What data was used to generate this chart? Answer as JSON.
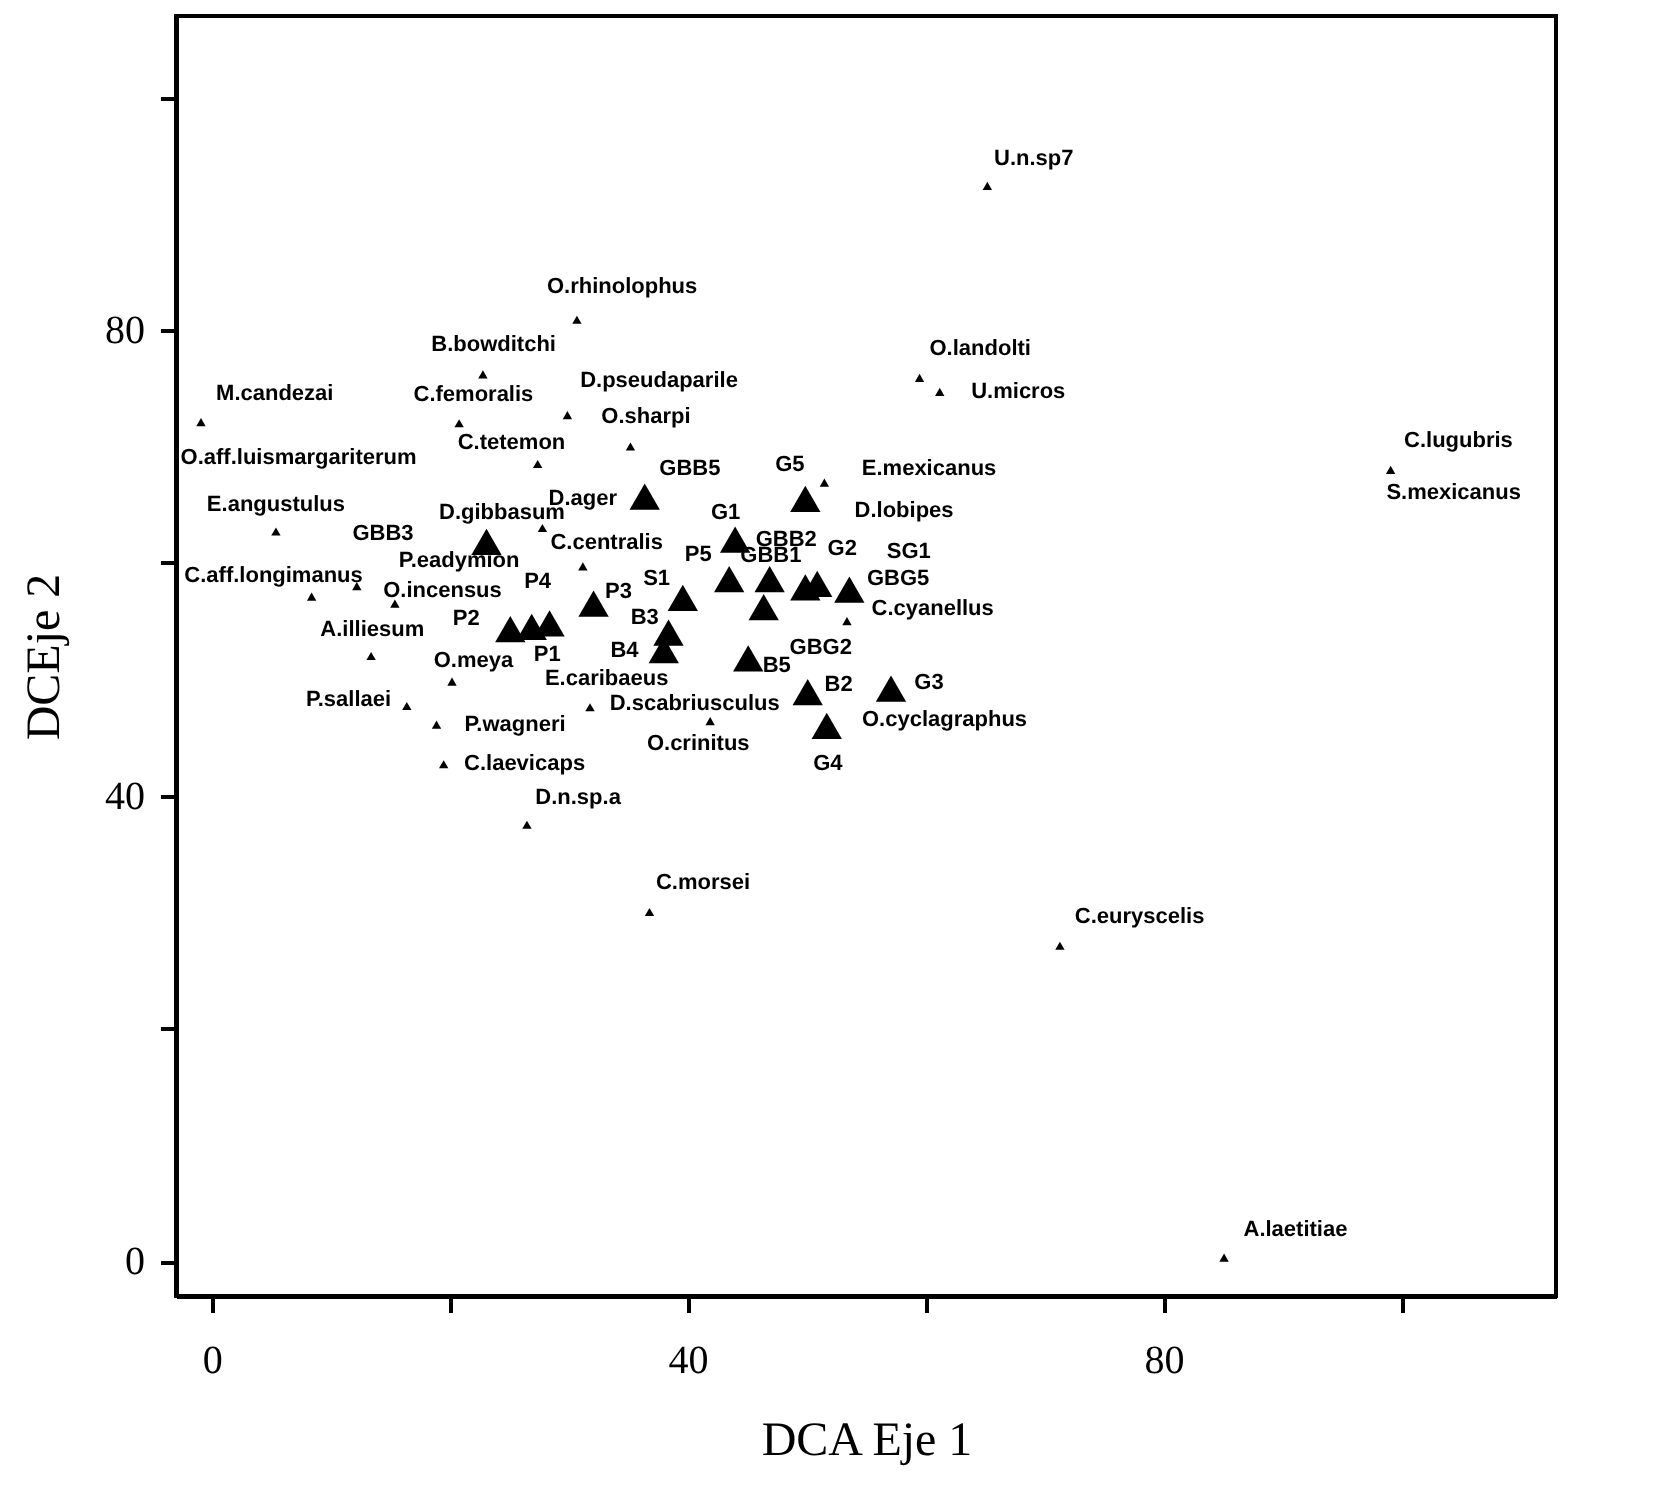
{
  "chart_data": {
    "type": "scatter",
    "xlabel": "DCA Eje 1",
    "ylabel": "DCEje 2",
    "xlim": [
      -3,
      113
    ],
    "ylim": [
      -3,
      107
    ],
    "xticks": [
      0,
      {
        "value": 20,
        "label": null
      },
      40,
      {
        "value": 60,
        "label": null
      },
      80,
      {
        "value": 100,
        "label": null
      }
    ],
    "yticks": [
      0,
      {
        "value": 20,
        "label": null
      },
      40,
      {
        "value": 60,
        "label": null
      },
      80,
      {
        "value": 100,
        "label": null
      }
    ],
    "grid": false,
    "marker": "triangle",
    "series": [
      {
        "color": "#000000",
        "x": [
          65.2,
          30.7,
          22.8,
          -0.9,
          20.8,
          29.9,
          35.2,
          27.4,
          59.5,
          61.2,
          51.5,
          99.1,
          5.4,
          8.4,
          13.4,
          16.4,
          12.2,
          15.4,
          27.8,
          31.2,
          20.2,
          18.9,
          19.5,
          26.5,
          31.8,
          41.9,
          36.8,
          71.3,
          85.1,
          53.4
        ],
        "values": [
          92.4,
          80.9,
          76.2,
          72.1,
          72.0,
          72.7,
          70.0,
          68.5,
          75.9,
          74.7,
          66.9,
          68.0,
          62.7,
          57.1,
          52.0,
          47.7,
          58.0,
          56.5,
          63.0,
          59.7,
          49.8,
          46.1,
          42.7,
          37.5,
          47.6,
          46.4,
          30.0,
          27.1,
          0.3,
          55.0
        ]
      },
      {
        "color": "#000000",
        "x": [
          36.4,
          49.9,
          23.1,
          44.0,
          43.5,
          46.9,
          46.4,
          49.9,
          50.9,
          53.6,
          39.6,
          38.4,
          38.0,
          45.1,
          50.1,
          57.1,
          51.7,
          32.1,
          25.1,
          26.9,
          28.4
        ],
        "values": [
          65.7,
          65.5,
          61.8,
          62.0,
          58.6,
          58.6,
          56.2,
          57.9,
          58.2,
          57.7,
          57.0,
          54.0,
          52.5,
          51.8,
          48.9,
          49.2,
          46.0,
          56.5,
          54.3,
          54.5,
          54.8
        ]
      }
    ],
    "annotations": [
      "U.n.sp7",
      "O.rhinolophus",
      "B.bowditchi",
      "M.candezai",
      "C.femoralis",
      "D.pseudaparile",
      "O.sharpi",
      "C.tetemon",
      "O.aff.luismargariterum",
      "O.landolti",
      "U.micros",
      "GBB5",
      "G5",
      "E.mexicanus",
      "D.ager",
      "E.angustulus",
      "D.gibbasum",
      "GBB3",
      "G1",
      "D.lobipes",
      "C.centralis",
      "P5",
      "GBB2",
      "G2",
      "SG1",
      "P.eadymion",
      "C.aff.longimanus",
      "O.incensus",
      "P4",
      "S1",
      "GBB1",
      "GBG5",
      "P3",
      "C.cyanellus",
      "B3",
      "A.illiesum",
      "P2",
      "GBG2",
      "B4",
      "O.meya",
      "P1",
      "B5",
      "E.caribaeus",
      "B2",
      "G3",
      "P.sallaei",
      "D.scabriusculus",
      "O.cyclagraphus",
      "P.wagneri",
      "O.crinitus",
      "G4",
      "C.laevicaps",
      "D.n.sp.a",
      "C.morsei",
      "C.euryscelis",
      "C.lugubris",
      "S.mexicanus",
      "A.laetitiae"
    ]
  }
}
